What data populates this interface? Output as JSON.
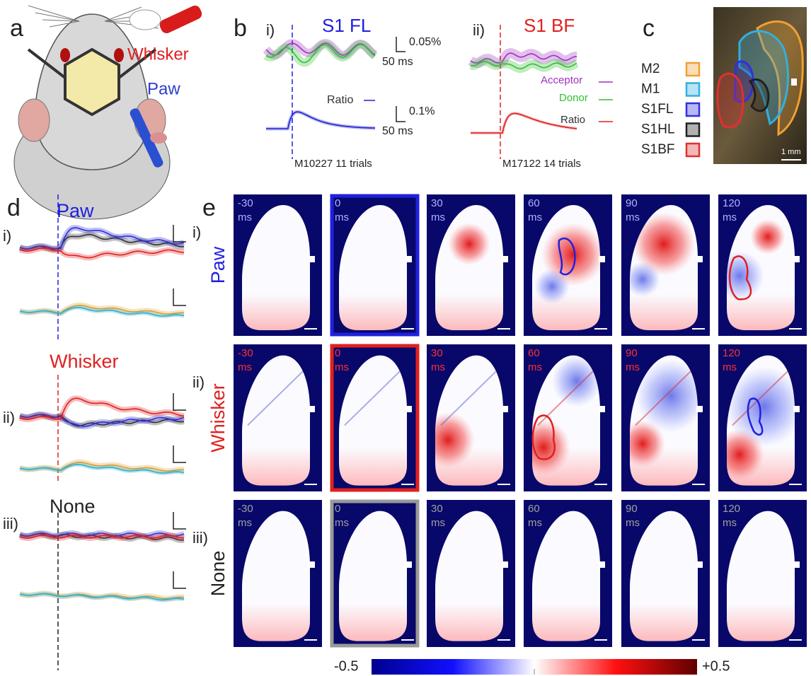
{
  "panel_a": {
    "label": "a",
    "whisker": "Whisker",
    "paw": "Paw"
  },
  "panel_b": {
    "label": "b",
    "left": {
      "label": "i)",
      "title": "S1 FL",
      "scale_y1": "0.05%",
      "scale_x1": "50 ms",
      "ratio": "Ratio",
      "scale_y2": "0.1%",
      "scale_x2": "50 ms",
      "note": "M10227 11 trials"
    },
    "right": {
      "label": "ii)",
      "title": "S1 BF",
      "acceptor": "Acceptor",
      "donor": "Donor",
      "ratio": "Ratio",
      "note": "M17122 14 trials"
    }
  },
  "panel_c": {
    "label": "c",
    "regions": [
      {
        "name": "M2",
        "color": "#f0a030"
      },
      {
        "name": "M1",
        "color": "#30b0e0"
      },
      {
        "name": "S1FL",
        "color": "#3030e0"
      },
      {
        "name": "S1HL",
        "color": "#202020"
      },
      {
        "name": "S1BF",
        "color": "#e03030"
      }
    ],
    "scale": "1 mm"
  },
  "panel_d": {
    "label": "d",
    "rows": [
      {
        "label": "i)",
        "stimulus": "Paw",
        "color": "#2020e0"
      },
      {
        "label": "ii)",
        "stimulus": "Whisker",
        "color": "#e02020"
      },
      {
        "label": "iii)",
        "stimulus": "None",
        "color": "#222222"
      }
    ]
  },
  "panel_e": {
    "label": "e",
    "rows": [
      {
        "label": "i)",
        "stimulus": "Paw",
        "color": "#2020e0",
        "time_color": "#b0b0ff"
      },
      {
        "label": "ii)",
        "stimulus": "Whisker",
        "color": "#e02020",
        "time_color": "#ff3030"
      },
      {
        "label": "iii)",
        "stimulus": "None",
        "color": "#222222",
        "time_color": "#a0a0a0"
      }
    ],
    "times": [
      "-30",
      "0",
      "30",
      "60",
      "90",
      "120"
    ],
    "unit": "ms"
  },
  "colorbar": {
    "min": "-0.5",
    "max": "+0.5"
  }
}
